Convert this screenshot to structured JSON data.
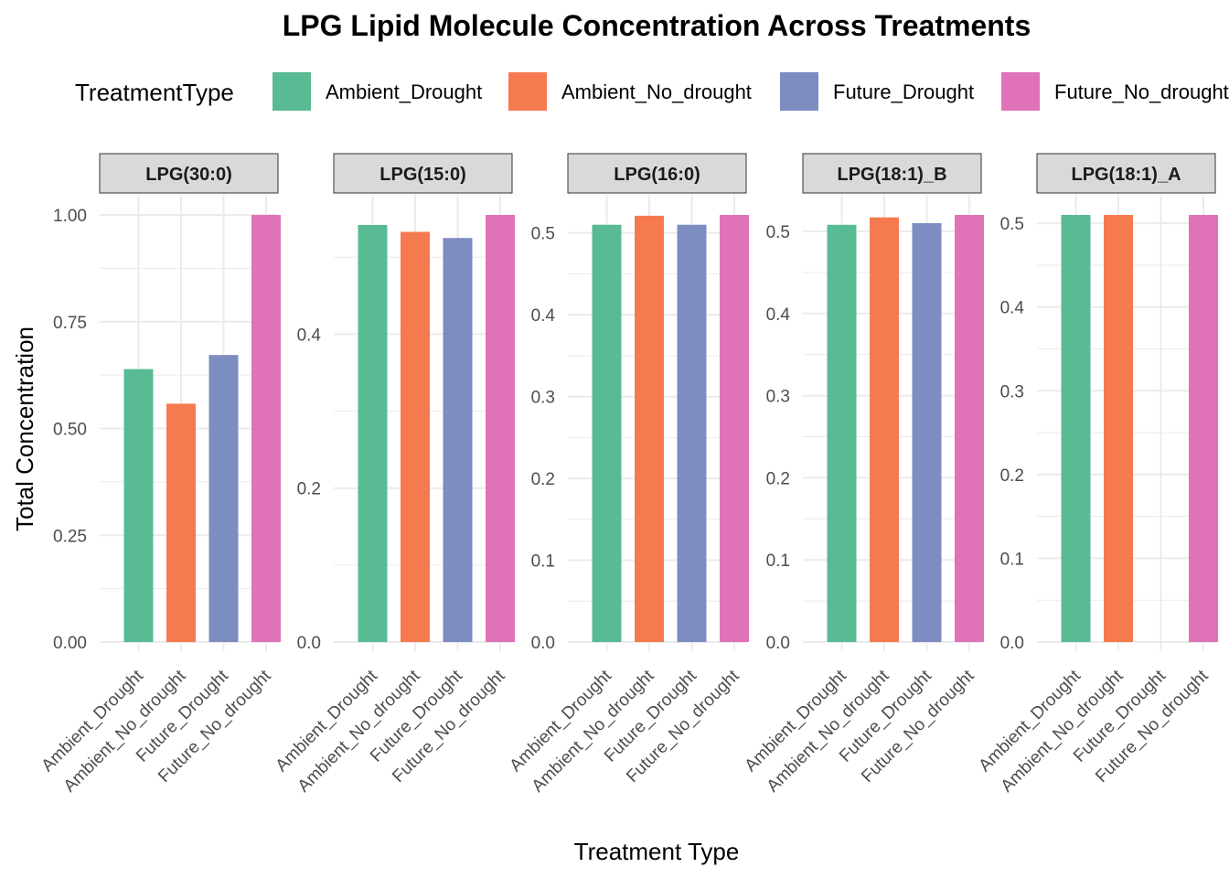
{
  "chart_data": {
    "type": "bar",
    "title": "LPG  Lipid Molecule Concentration Across Treatments",
    "xlabel": "Treatment Type",
    "ylabel": "Total Concentration",
    "legend": {
      "title": "TreatmentType",
      "position": "top",
      "entries": [
        {
          "name": "Ambient_Drought",
          "color": "#58BB94"
        },
        {
          "name": "Ambient_No_drought",
          "color": "#F67A50"
        },
        {
          "name": "Future_Drought",
          "color": "#7D8CC1"
        },
        {
          "name": "Future_No_drought",
          "color": "#E072B8"
        }
      ]
    },
    "categories": [
      "Ambient_Drought",
      "Ambient_No_drought",
      "Future_Drought",
      "Future_No_drought"
    ],
    "grid": true,
    "facets": [
      {
        "label": "LPG(30:0)",
        "ylim": [
          0,
          1.0
        ],
        "yticks": [
          "0.00",
          "0.25",
          "0.50",
          "0.75",
          "1.00"
        ],
        "tick_values": [
          0,
          0.25,
          0.5,
          0.75,
          1.0
        ],
        "values": [
          0.639,
          0.558,
          0.672,
          1.0
        ]
      },
      {
        "label": "LPG(15:0)",
        "ylim": [
          0,
          0.555
        ],
        "yticks": [
          "0.0",
          "0.2",
          "0.4"
        ],
        "tick_values": [
          0,
          0.2,
          0.4
        ],
        "values": [
          0.542,
          0.533,
          0.525,
          0.555
        ]
      },
      {
        "label": "LPG(16:0)",
        "ylim": [
          0,
          0.522
        ],
        "yticks": [
          "0.0",
          "0.1",
          "0.2",
          "0.3",
          "0.4",
          "0.5"
        ],
        "tick_values": [
          0,
          0.1,
          0.2,
          0.3,
          0.4,
          0.5
        ],
        "values": [
          0.51,
          0.521,
          0.51,
          0.522
        ]
      },
      {
        "label": "LPG(18:1)_B",
        "ylim": [
          0,
          0.52
        ],
        "yticks": [
          "0.0",
          "0.1",
          "0.2",
          "0.3",
          "0.4",
          "0.5"
        ],
        "tick_values": [
          0,
          0.1,
          0.2,
          0.3,
          0.4,
          0.5
        ],
        "values": [
          0.508,
          0.517,
          0.51,
          0.52
        ]
      },
      {
        "label": "LPG(18:1)_A",
        "ylim": [
          0,
          0.51
        ],
        "yticks": [
          "0.0",
          "0.1",
          "0.2",
          "0.3",
          "0.4",
          "0.5"
        ],
        "tick_values": [
          0,
          0.1,
          0.2,
          0.3,
          0.4,
          0.5
        ],
        "values": [
          0.51,
          0.51,
          null,
          0.51
        ]
      }
    ]
  }
}
